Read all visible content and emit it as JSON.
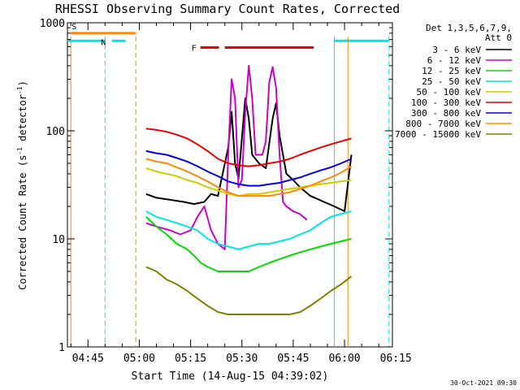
{
  "chart_data": {
    "type": "line",
    "title": "RHESSI Observing Summary Count Rates, Corrected",
    "xlabel": "Start Time (14-Aug-15 04:39:02)",
    "ylabel_main": "Corrected Count Rate (s",
    "ylabel_sup1": "-1",
    "ylabel_mid": " detector",
    "ylabel_sup2": "-1",
    "ylabel_end": ")",
    "yscale": "log",
    "ylim": [
      1,
      1000
    ],
    "xlim_minutes": [
      0,
      95
    ],
    "y_ticks": [
      {
        "value": 1,
        "label": "1"
      },
      {
        "value": 10,
        "label": "10"
      },
      {
        "value": 100,
        "label": "100"
      },
      {
        "value": 1000,
        "label": "1000"
      }
    ],
    "x_ticks": [
      {
        "minute": 6,
        "label": "04:45"
      },
      {
        "minute": 21,
        "label": "05:00"
      },
      {
        "minute": 36,
        "label": "05:15"
      },
      {
        "minute": 51,
        "label": "05:30"
      },
      {
        "minute": 66,
        "label": "05:45"
      },
      {
        "minute": 81,
        "label": "06:00"
      },
      {
        "minute": 96,
        "label": "06:15"
      }
    ],
    "legend": {
      "header1": "Det 1,3,5,6,7,9,",
      "header2": "Att 0",
      "entries": [
        {
          "label": "3 - 6 keV",
          "color": "#000000"
        },
        {
          "label": "6 - 12 keV",
          "color": "#cc00cc"
        },
        {
          "label": "12 - 25 keV",
          "color": "#00dd00"
        },
        {
          "label": "25 - 50 keV",
          "color": "#00e5e5"
        },
        {
          "label": "50 - 100 keV",
          "color": "#cccc00"
        },
        {
          "label": "100 - 300 keV",
          "color": "#ee0000"
        },
        {
          "label": "300 - 800 keV",
          "color": "#0000ee"
        },
        {
          "label": "800 - 7000 keV",
          "color": "#ff8800"
        },
        {
          "label": "7000 - 15000 keV",
          "color": "#808000"
        }
      ]
    },
    "series": [
      {
        "color": "#000000",
        "points": [
          [
            23,
            26
          ],
          [
            26,
            24
          ],
          [
            30,
            23
          ],
          [
            34,
            22
          ],
          [
            37,
            21
          ],
          [
            40,
            22
          ],
          [
            42,
            26
          ],
          [
            44,
            25
          ],
          [
            47,
            70
          ],
          [
            48,
            150
          ],
          [
            49,
            50
          ],
          [
            50,
            36
          ],
          [
            52,
            200
          ],
          [
            53,
            130
          ],
          [
            54,
            60
          ],
          [
            56,
            50
          ],
          [
            58,
            45
          ],
          [
            60,
            130
          ],
          [
            61,
            180
          ],
          [
            62,
            90
          ],
          [
            64,
            40
          ],
          [
            66,
            35
          ],
          [
            68,
            30
          ],
          [
            71,
            25
          ],
          [
            75,
            22
          ],
          [
            78,
            20
          ],
          [
            81,
            18
          ],
          [
            83,
            60
          ]
        ]
      },
      {
        "color": "#cc00cc",
        "points": [
          [
            23,
            14
          ],
          [
            26,
            13
          ],
          [
            30,
            12
          ],
          [
            33,
            11
          ],
          [
            36,
            12
          ],
          [
            38,
            16
          ],
          [
            40,
            20
          ],
          [
            42,
            12
          ],
          [
            44,
            9
          ],
          [
            46,
            8
          ],
          [
            47,
            60
          ],
          [
            48,
            300
          ],
          [
            49,
            200
          ],
          [
            50,
            30
          ],
          [
            51,
            35
          ],
          [
            52,
            150
          ],
          [
            53,
            400
          ],
          [
            54,
            200
          ],
          [
            55,
            60
          ],
          [
            57,
            60
          ],
          [
            58,
            80
          ],
          [
            59,
            280
          ],
          [
            60,
            390
          ],
          [
            61,
            250
          ],
          [
            62,
            60
          ],
          [
            63,
            22
          ],
          [
            64,
            20
          ],
          [
            66,
            18
          ],
          [
            68,
            17
          ],
          [
            70,
            15
          ]
        ]
      },
      {
        "color": "#00dd00",
        "points": [
          [
            23,
            16
          ],
          [
            26,
            13
          ],
          [
            29,
            11
          ],
          [
            32,
            9
          ],
          [
            35,
            8
          ],
          [
            37,
            7
          ],
          [
            39,
            6
          ],
          [
            41,
            5.5
          ],
          [
            44,
            5
          ],
          [
            47,
            5
          ],
          [
            50,
            5
          ],
          [
            53,
            5
          ],
          [
            56,
            5.5
          ],
          [
            59,
            6
          ],
          [
            62,
            6.5
          ],
          [
            65,
            7
          ],
          [
            68,
            7.5
          ],
          [
            71,
            8
          ],
          [
            74,
            8.5
          ],
          [
            77,
            9
          ],
          [
            80,
            9.5
          ],
          [
            83,
            10
          ]
        ]
      },
      {
        "color": "#00e5e5",
        "points": [
          [
            23,
            18
          ],
          [
            26,
            16
          ],
          [
            29,
            15
          ],
          [
            32,
            14
          ],
          [
            35,
            13
          ],
          [
            38,
            12
          ],
          [
            41,
            10
          ],
          [
            44,
            9
          ],
          [
            47,
            8.5
          ],
          [
            50,
            8
          ],
          [
            53,
            8.5
          ],
          [
            56,
            9
          ],
          [
            59,
            9
          ],
          [
            62,
            9.5
          ],
          [
            65,
            10
          ],
          [
            68,
            11
          ],
          [
            71,
            12
          ],
          [
            74,
            14
          ],
          [
            77,
            16
          ],
          [
            80,
            17
          ],
          [
            83,
            18
          ]
        ]
      },
      {
        "color": "#cccc00",
        "points": [
          [
            23,
            45
          ],
          [
            26,
            42
          ],
          [
            29,
            40
          ],
          [
            32,
            38
          ],
          [
            35,
            35
          ],
          [
            38,
            33
          ],
          [
            41,
            30
          ],
          [
            44,
            28
          ],
          [
            47,
            26
          ],
          [
            50,
            25
          ],
          [
            53,
            26
          ],
          [
            56,
            26
          ],
          [
            59,
            27
          ],
          [
            62,
            28
          ],
          [
            65,
            29
          ],
          [
            68,
            30
          ],
          [
            71,
            31
          ],
          [
            74,
            32
          ],
          [
            77,
            33
          ],
          [
            80,
            34
          ],
          [
            83,
            35
          ]
        ]
      },
      {
        "color": "#ee0000",
        "points": [
          [
            23,
            105
          ],
          [
            26,
            102
          ],
          [
            29,
            98
          ],
          [
            32,
            92
          ],
          [
            35,
            85
          ],
          [
            38,
            75
          ],
          [
            41,
            65
          ],
          [
            44,
            55
          ],
          [
            47,
            50
          ],
          [
            50,
            48
          ],
          [
            53,
            47
          ],
          [
            56,
            48
          ],
          [
            59,
            50
          ],
          [
            62,
            52
          ],
          [
            65,
            55
          ],
          [
            68,
            60
          ],
          [
            71,
            65
          ],
          [
            74,
            70
          ],
          [
            77,
            75
          ],
          [
            80,
            80
          ],
          [
            83,
            85
          ]
        ]
      },
      {
        "color": "#0000ee",
        "points": [
          [
            23,
            65
          ],
          [
            26,
            62
          ],
          [
            29,
            60
          ],
          [
            32,
            56
          ],
          [
            35,
            52
          ],
          [
            38,
            47
          ],
          [
            41,
            42
          ],
          [
            44,
            38
          ],
          [
            47,
            34
          ],
          [
            50,
            32
          ],
          [
            53,
            31
          ],
          [
            56,
            31
          ],
          [
            59,
            32
          ],
          [
            62,
            33
          ],
          [
            65,
            35
          ],
          [
            68,
            37
          ],
          [
            71,
            40
          ],
          [
            74,
            43
          ],
          [
            77,
            46
          ],
          [
            80,
            50
          ],
          [
            83,
            55
          ]
        ]
      },
      {
        "color": "#ff8800",
        "points": [
          [
            23,
            55
          ],
          [
            26,
            52
          ],
          [
            29,
            50
          ],
          [
            32,
            46
          ],
          [
            35,
            42
          ],
          [
            38,
            38
          ],
          [
            41,
            34
          ],
          [
            44,
            30
          ],
          [
            47,
            27
          ],
          [
            50,
            25
          ],
          [
            53,
            25
          ],
          [
            56,
            25
          ],
          [
            59,
            25
          ],
          [
            62,
            26
          ],
          [
            65,
            27
          ],
          [
            68,
            29
          ],
          [
            71,
            31
          ],
          [
            74,
            34
          ],
          [
            77,
            37
          ],
          [
            80,
            41
          ],
          [
            83,
            47
          ]
        ]
      },
      {
        "color": "#808000",
        "points": [
          [
            23,
            5.5
          ],
          [
            26,
            5
          ],
          [
            29,
            4.2
          ],
          [
            32,
            3.8
          ],
          [
            35,
            3.3
          ],
          [
            38,
            2.8
          ],
          [
            41,
            2.4
          ],
          [
            44,
            2.1
          ],
          [
            47,
            2
          ],
          [
            50,
            2
          ],
          [
            53,
            2
          ],
          [
            56,
            2
          ],
          [
            59,
            2
          ],
          [
            62,
            2
          ],
          [
            65,
            2
          ],
          [
            68,
            2.1
          ],
          [
            71,
            2.4
          ],
          [
            74,
            2.8
          ],
          [
            77,
            3.3
          ],
          [
            80,
            3.8
          ],
          [
            83,
            4.5
          ]
        ]
      }
    ],
    "bars": [
      {
        "label": "S",
        "color": "#ff8800",
        "start": 1,
        "end": 20,
        "value": 800
      },
      {
        "label": "N",
        "color": "#00e5e5",
        "start": -1,
        "end": 11,
        "value": 680
      },
      {
        "label": "",
        "color": "#00e5e5",
        "start": 13,
        "end": 17,
        "value": 680
      },
      {
        "label": "",
        "color": "#00e5e5",
        "start": 78,
        "end": 94,
        "value": 680
      },
      {
        "label": "F",
        "color": "#ee0000",
        "start": 36,
        "end": 72,
        "value": 590
      }
    ],
    "vlines": [
      {
        "minute": 1,
        "color": "#ff8800",
        "dash": false
      },
      {
        "minute": 11,
        "color": "#00e5e5",
        "dash": true
      },
      {
        "minute": 20,
        "color": "#ff8800",
        "dash": true
      },
      {
        "minute": 78,
        "color": "#00e5e5",
        "dash": false
      },
      {
        "minute": 82,
        "color": "#ff8800",
        "dash": false
      },
      {
        "minute": 94,
        "color": "#00e5e5",
        "dash": true
      }
    ],
    "grid": false,
    "legend_position": "right"
  },
  "footer": {
    "timestamp": "30-Oct-2021 09:30"
  }
}
